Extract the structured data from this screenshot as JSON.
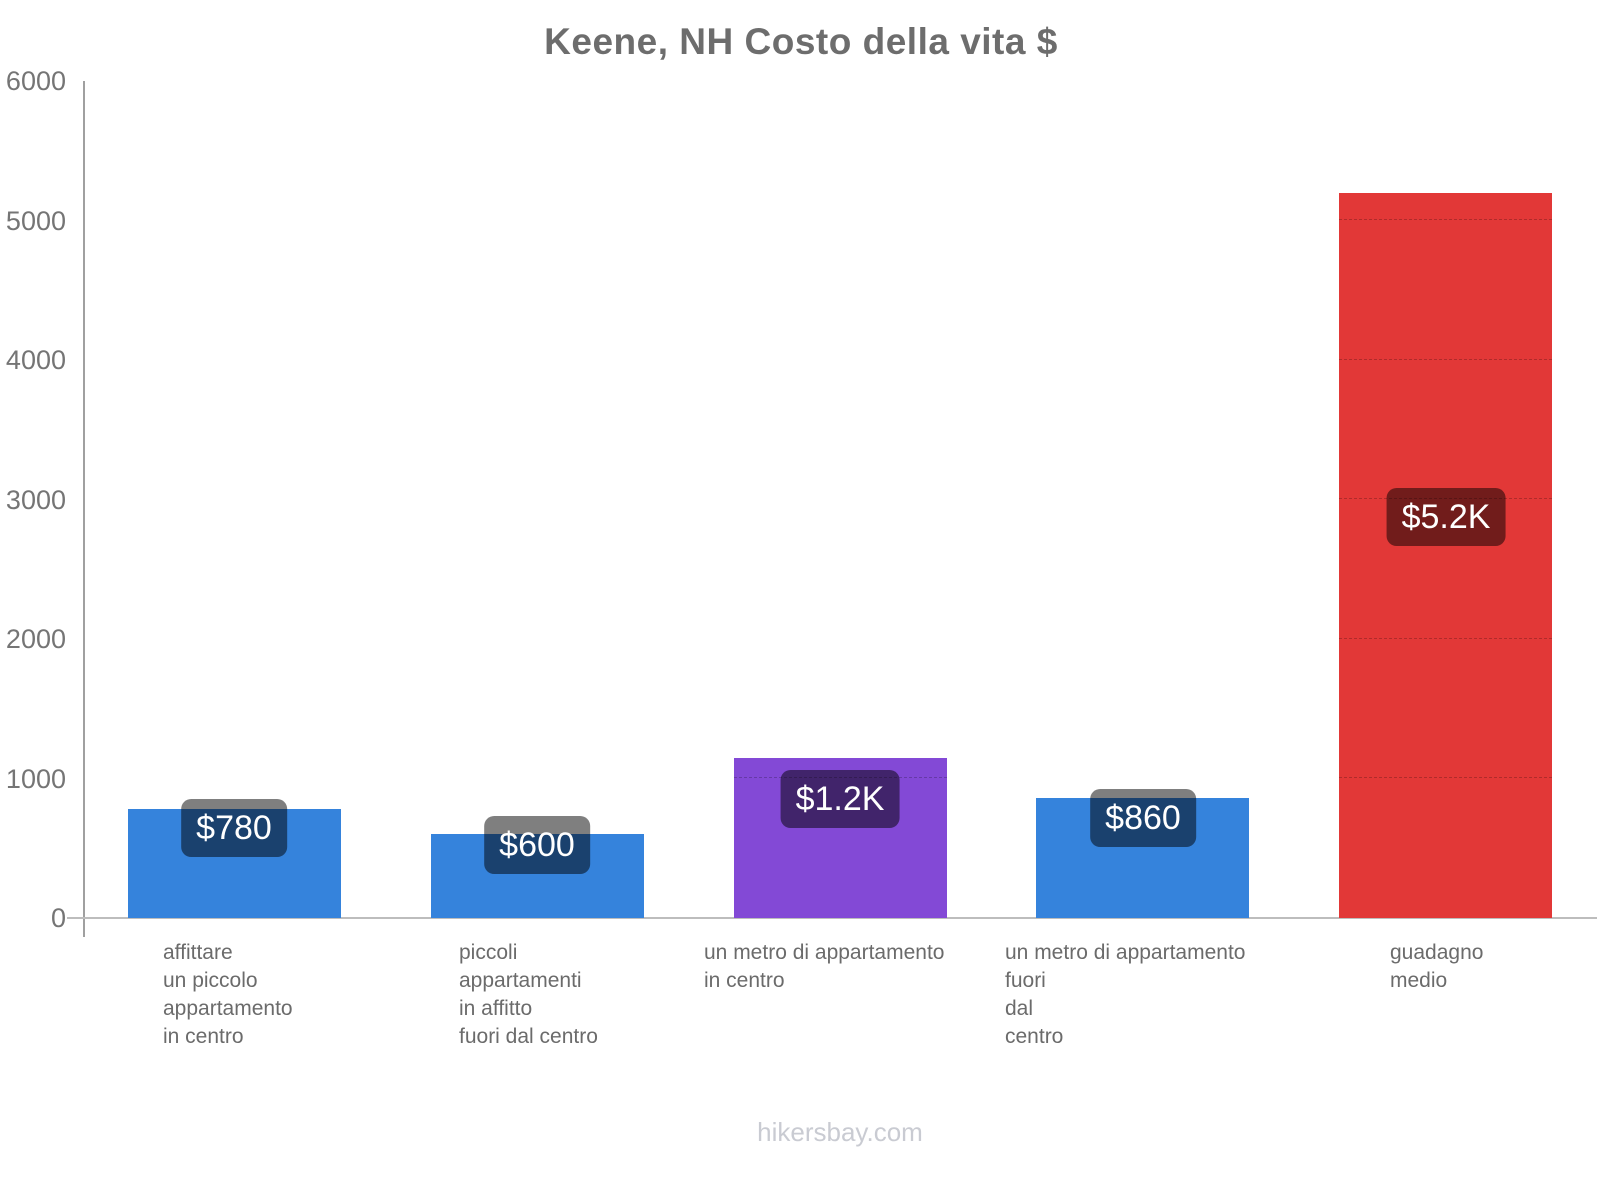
{
  "chart_data": {
    "type": "bar",
    "title": "Keene, NH Costo della vita $",
    "categories": [
      [
        "affittare",
        "un piccolo",
        "appartamento",
        "in centro"
      ],
      [
        "piccoli",
        "appartamenti",
        "in affitto",
        "fuori dal centro"
      ],
      [
        "un metro di appartamento",
        "in centro"
      ],
      [
        "un metro di appartamento",
        "fuori",
        "dal",
        "centro"
      ],
      [
        "guadagno",
        "medio"
      ]
    ],
    "values": [
      780,
      600,
      1150,
      860,
      5200
    ],
    "value_labels": [
      "$780",
      "$600",
      "$1.2K",
      "$860",
      "$5.2K"
    ],
    "bar_colors": [
      "#3583dc",
      "#3583dc",
      "#8349d6",
      "#3583dc",
      "#e23837"
    ],
    "xlabel": "",
    "ylabel": "",
    "ylim": [
      0,
      6000
    ],
    "yticks": [
      0,
      1000,
      2000,
      3000,
      4000,
      5000,
      6000
    ],
    "grid": "faint dashed horizontal gridlines visible only across bars",
    "legend": "none",
    "currency": "$"
  },
  "footer": {
    "watermark": "hikersbay.com"
  },
  "colors": {
    "bar_blue": "#3583dc",
    "bar_purple": "#8349d6",
    "bar_red": "#e23837",
    "value_badge_bg": "rgba(0,0,0,0.5)",
    "value_badge_text": "#ffffff",
    "title_text": "#6d6d6d",
    "axis_tick_text": "#757575",
    "category_text": "#6b6b6b",
    "watermark_text": "#c9cbd2",
    "y_axis_line": "#a0a0a0",
    "x_axis_line": "#bdbdbd",
    "background": "#ffffff"
  }
}
